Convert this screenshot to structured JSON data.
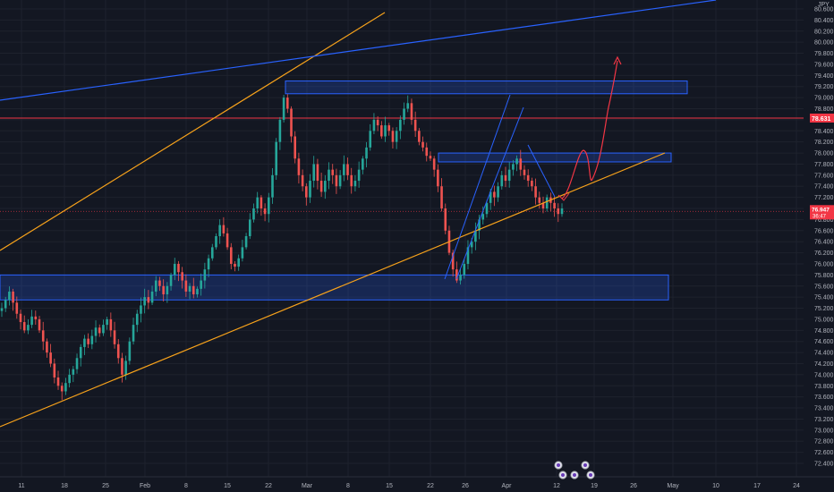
{
  "chart_data": {
    "type": "candlestick",
    "currency_label": "JPY",
    "y_ticks": [
      "80.600",
      "80.400",
      "80.200",
      "80.000",
      "79.800",
      "79.600",
      "79.400",
      "79.200",
      "79.000",
      "78.800",
      "78.600",
      "78.400",
      "78.200",
      "78.000",
      "77.800",
      "77.600",
      "77.400",
      "77.200",
      "77.000",
      "76.800",
      "76.600",
      "76.400",
      "76.200",
      "76.000",
      "75.800",
      "75.600",
      "75.400",
      "75.200",
      "75.000",
      "74.800",
      "74.600",
      "74.400",
      "74.200",
      "74.000",
      "73.800",
      "73.600",
      "73.400",
      "73.200",
      "73.000",
      "72.800",
      "72.600",
      "72.400"
    ],
    "ylim": [
      72.3,
      80.7
    ],
    "x_ticks": [
      "11",
      "18",
      "25",
      "Feb",
      "8",
      "15",
      "22",
      "Mar",
      "8",
      "15",
      "22",
      "26",
      "Apr",
      "12",
      "19",
      "26",
      "May",
      "10",
      "17",
      "24"
    ],
    "price_line": {
      "value": 78.631,
      "label": "78.631",
      "color": "#f23645"
    },
    "last_price": {
      "value": 76.947,
      "label": "76.947",
      "countdown": "36:47",
      "color": "#f23645"
    },
    "zones": [
      {
        "top": 79.3,
        "bottom": 79.07,
        "color": "#2962ff"
      },
      {
        "top": 78.0,
        "bottom": 77.84,
        "color": "#2962ff"
      },
      {
        "top": 75.8,
        "bottom": 75.35,
        "color": "#2962ff"
      }
    ],
    "close_path": [
      75.2,
      75.35,
      75.5,
      75.3,
      75.1,
      74.95,
      74.8,
      74.9,
      75.05,
      75.0,
      74.8,
      74.6,
      74.4,
      74.2,
      73.95,
      73.8,
      73.7,
      73.85,
      74.0,
      74.1,
      74.3,
      74.5,
      74.65,
      74.55,
      74.7,
      74.85,
      74.75,
      74.9,
      75.0,
      74.8,
      74.55,
      74.3,
      74.0,
      74.25,
      74.6,
      74.9,
      75.1,
      75.25,
      75.4,
      75.3,
      75.5,
      75.7,
      75.6,
      75.45,
      75.6,
      75.8,
      76.0,
      75.85,
      75.7,
      75.5,
      75.6,
      75.45,
      75.55,
      75.7,
      75.9,
      76.1,
      76.3,
      76.5,
      76.7,
      76.55,
      76.3,
      76.0,
      75.95,
      76.1,
      76.3,
      76.5,
      76.8,
      77.0,
      77.2,
      77.0,
      76.9,
      77.2,
      77.6,
      78.2,
      78.6,
      79.0,
      78.8,
      78.3,
      77.9,
      77.6,
      77.4,
      77.2,
      77.5,
      77.8,
      77.5,
      77.3,
      77.5,
      77.7,
      77.6,
      77.4,
      77.6,
      77.8,
      77.6,
      77.4,
      77.5,
      77.7,
      77.9,
      78.1,
      78.4,
      78.6,
      78.5,
      78.3,
      78.5,
      78.4,
      78.2,
      78.4,
      78.6,
      78.8,
      78.9,
      78.6,
      78.4,
      78.2,
      78.1,
      77.95,
      77.9,
      77.7,
      77.4,
      77.0,
      76.6,
      76.2,
      75.9,
      75.7,
      75.8,
      76.0,
      76.3,
      76.4,
      76.6,
      76.8,
      76.9,
      77.1,
      77.3,
      77.2,
      77.4,
      77.6,
      77.5,
      77.7,
      77.8,
      77.9,
      77.7,
      77.6,
      77.5,
      77.4,
      77.2,
      77.1,
      77.0,
      77.2,
      77.1,
      77.0,
      76.9,
      77.0
    ]
  },
  "projection": {
    "color": "#f23645"
  },
  "trendlines": {
    "orange": "#f7a21b",
    "blue": "#2962ff"
  },
  "event_markers": {
    "count": 5,
    "icon": "event-flag-icon"
  }
}
